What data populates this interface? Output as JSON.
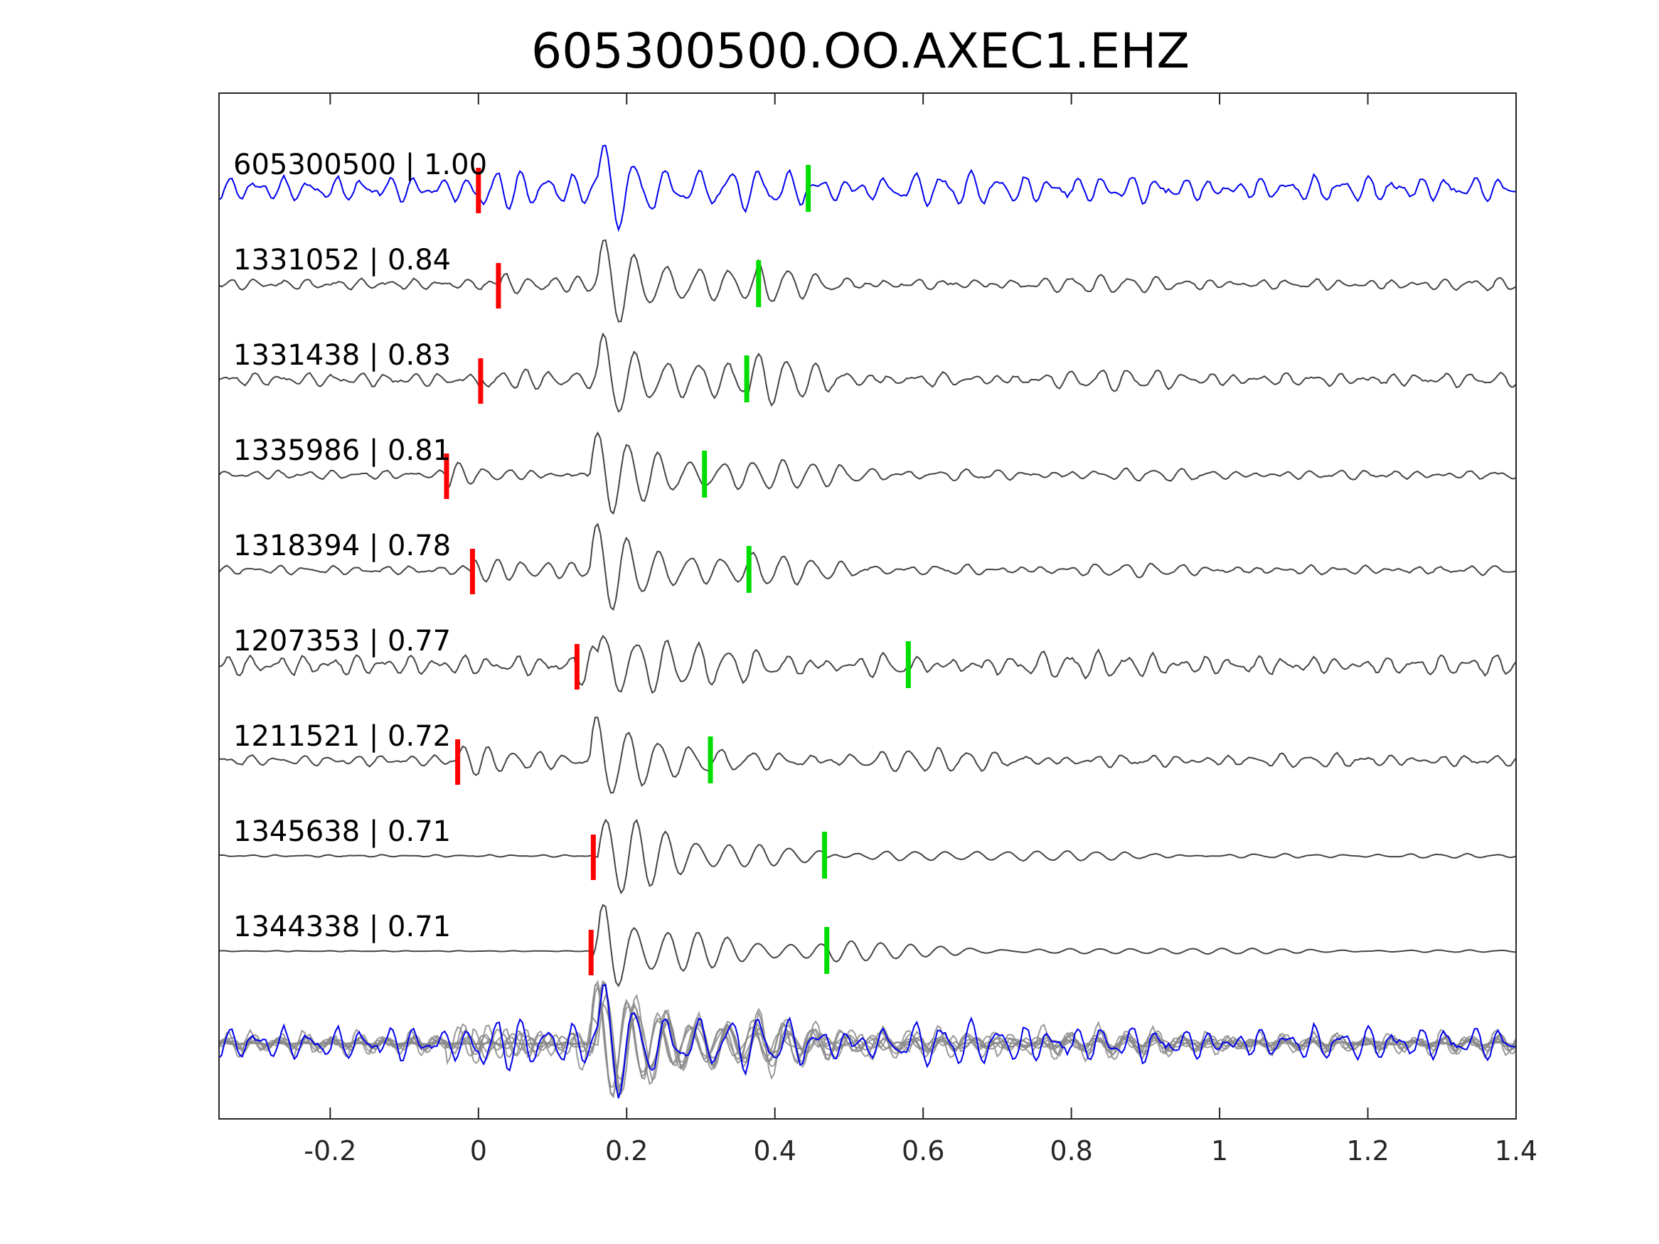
{
  "chart_data": {
    "type": "line",
    "title": "605300500.OO.AXEC1.EHZ",
    "xlabel": "",
    "ylabel": "",
    "xlim": [
      -0.35,
      1.4
    ],
    "x_ticks": [
      -0.2,
      0,
      0.2,
      0.4,
      0.6,
      0.8,
      1.0,
      1.2,
      1.4
    ],
    "x_tick_labels": [
      "-0.2",
      "0",
      "0.2",
      "0.4",
      "0.6",
      "0.8",
      "1",
      "1.2",
      "1.4"
    ],
    "grid": false,
    "legend": "none",
    "colors": {
      "template": "#0000ee",
      "matched": "#444444",
      "stack": "#888888",
      "p_pick": "#ff0000",
      "s_pick": "#00dd00",
      "axes": "#262626"
    },
    "traces": [
      {
        "event_id": "605300500",
        "label": "605300500 | 1.00",
        "correlation": 1.0,
        "p_pick": 0.0,
        "s_pick": 0.445,
        "onset": 0.16,
        "noise": 0.55,
        "amp": 1.0,
        "coda": 0.45,
        "template": true
      },
      {
        "event_id": "1331052",
        "label": "1331052 | 0.84",
        "correlation": 0.84,
        "p_pick": 0.027,
        "s_pick": 0.378,
        "onset": 0.16,
        "noise": 0.25,
        "amp": 1.0,
        "coda": 0.55,
        "template": false
      },
      {
        "event_id": "1331438",
        "label": "1331438 | 0.83",
        "correlation": 0.83,
        "p_pick": 0.003,
        "s_pick": 0.362,
        "onset": 0.16,
        "noise": 0.3,
        "amp": 1.0,
        "coda": 0.6,
        "template": false
      },
      {
        "event_id": "1335986",
        "label": "1335986 | 0.81",
        "correlation": 0.81,
        "p_pick": -0.043,
        "s_pick": 0.305,
        "onset": 0.15,
        "noise": 0.2,
        "amp": 1.0,
        "coda": 0.3,
        "template": false
      },
      {
        "event_id": "1318394",
        "label": "1318394 | 0.78",
        "correlation": 0.78,
        "p_pick": -0.008,
        "s_pick": 0.365,
        "onset": 0.15,
        "noise": 0.2,
        "amp": 1.0,
        "coda": 0.35,
        "template": false
      },
      {
        "event_id": "1207353",
        "label": "1207353 | 0.77",
        "correlation": 0.77,
        "p_pick": 0.133,
        "s_pick": 0.58,
        "onset": 0.16,
        "noise": 0.45,
        "amp": 1.0,
        "coda": 0.45,
        "template": false
      },
      {
        "event_id": "1211521",
        "label": "1211521 | 0.72",
        "correlation": 0.72,
        "p_pick": -0.028,
        "s_pick": 0.313,
        "onset": 0.15,
        "noise": 0.25,
        "amp": 1.0,
        "coda": 0.45,
        "template": false
      },
      {
        "event_id": "1345638",
        "label": "1345638 | 0.71",
        "correlation": 0.71,
        "p_pick": 0.155,
        "s_pick": 0.467,
        "onset": 0.16,
        "noise": 0.05,
        "amp": 1.0,
        "coda": 0.3,
        "template": false
      },
      {
        "event_id": "1344338",
        "label": "1344338 | 0.71",
        "correlation": 0.71,
        "p_pick": 0.152,
        "s_pick": 0.47,
        "onset": 0.16,
        "noise": 0.02,
        "amp": 1.0,
        "coda": 0.25,
        "template": false
      }
    ],
    "stack": {
      "label": "",
      "description_shown": false
    }
  }
}
